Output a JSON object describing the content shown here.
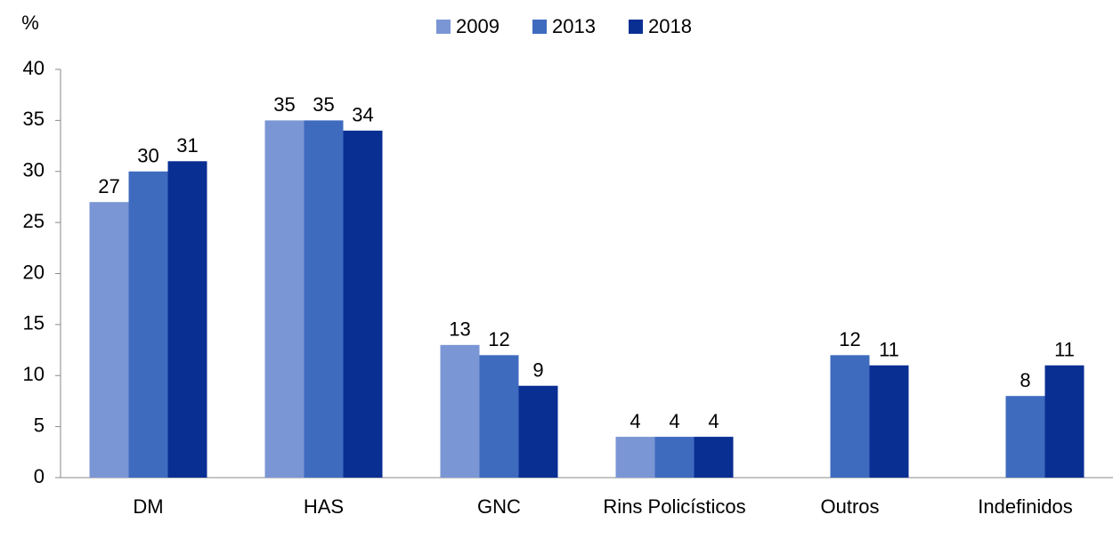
{
  "chart_data": {
    "type": "bar",
    "y_label": "%",
    "categories": [
      "DM",
      "HAS",
      "GNC",
      "Rins Policísticos",
      "Outros",
      "Indefinidos"
    ],
    "series": [
      {
        "name": "2009",
        "color": "#7b96d4",
        "values": [
          27,
          35,
          13,
          4,
          null,
          null
        ]
      },
      {
        "name": "2013",
        "color": "#3f6bbf",
        "values": [
          30,
          35,
          12,
          4,
          12,
          8
        ]
      },
      {
        "name": "2018",
        "color": "#0a2f93",
        "values": [
          31,
          34,
          9,
          4,
          11,
          11
        ]
      }
    ],
    "ylim": [
      0,
      40
    ],
    "yticks": [
      0,
      5,
      10,
      15,
      20,
      25,
      30,
      35,
      40
    ],
    "grid": false,
    "legend": "top"
  }
}
